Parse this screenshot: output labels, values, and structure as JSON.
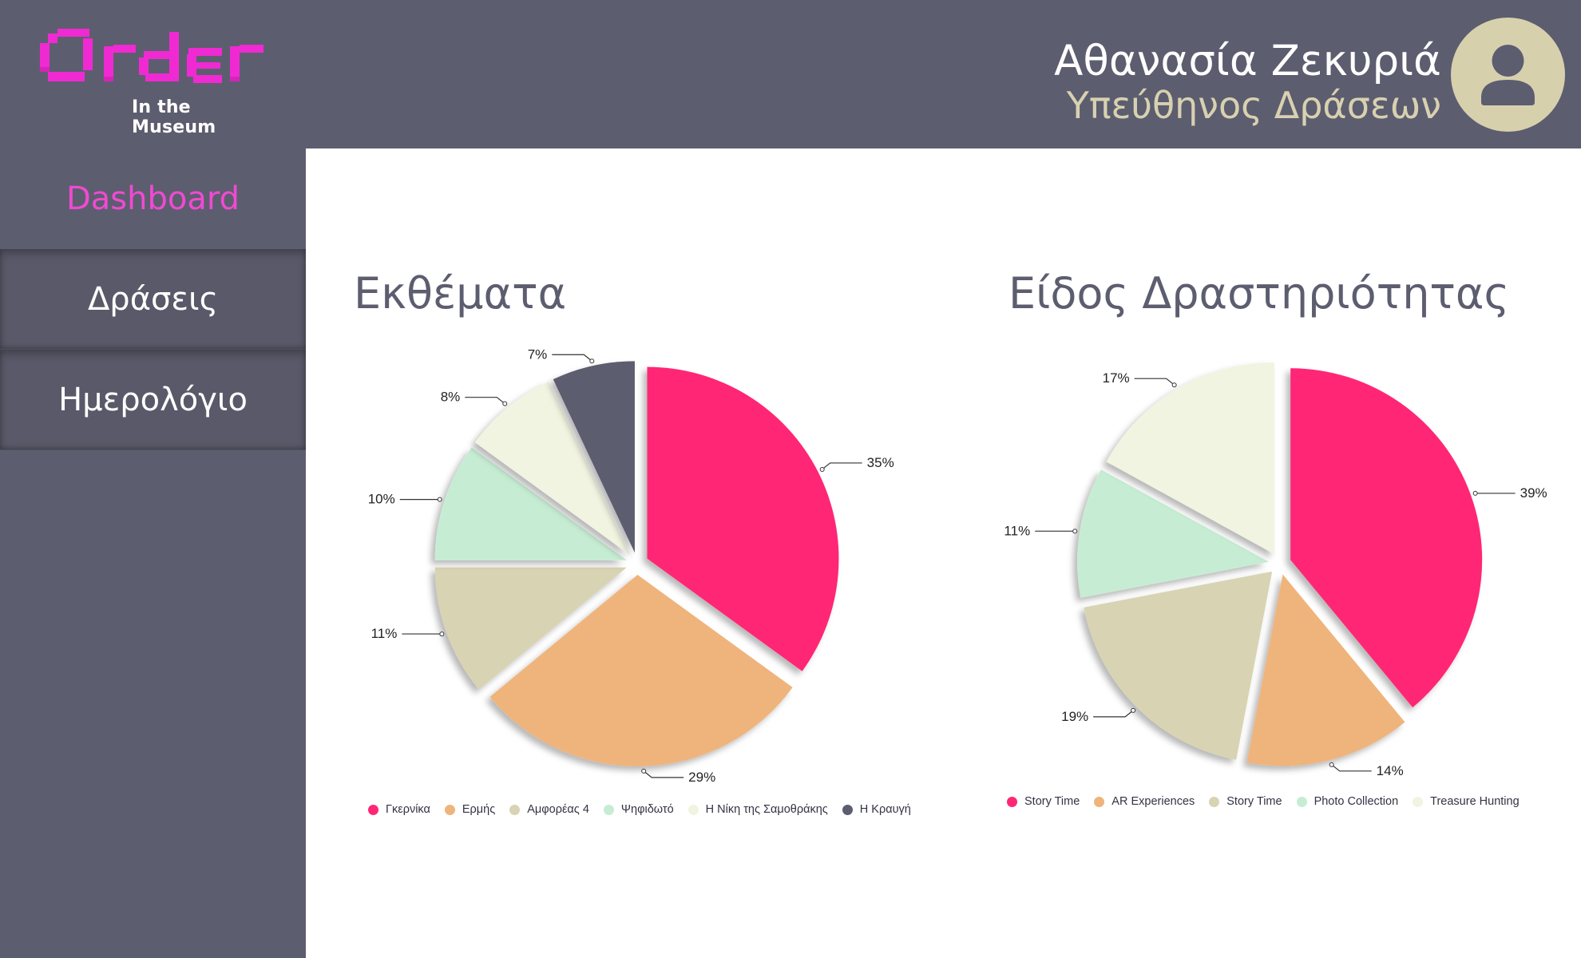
{
  "app": {
    "logo_text": "Order",
    "logo_subtitle": "In the Museum",
    "logo_color": "#f02ad2"
  },
  "user": {
    "name": "Αθανασία Ζεκυριά",
    "role": "Υπεύθηνος Δράσεων",
    "avatar_icon": "user-silhouette-icon"
  },
  "sidebar": {
    "items": [
      {
        "label": "Dashboard",
        "active": true
      },
      {
        "label": "Δράσεις",
        "active": false
      },
      {
        "label": "Ημερολόγιο",
        "active": false
      }
    ]
  },
  "colors": {
    "header_bg": "#5d5d70",
    "accent_pink": "#f04ad2",
    "avatar_bg": "#d7d0ad"
  },
  "chart_data": [
    {
      "type": "pie",
      "title": "Εκθέματα",
      "legend_position": "bottom",
      "slices": [
        {
          "name": "Γκερνίκα",
          "value": 35,
          "label": "35%",
          "color": "#ff2775"
        },
        {
          "name": "Ερμής",
          "value": 29,
          "label": "29%",
          "color": "#efb47c"
        },
        {
          "name": "Αμφορέας 4",
          "value": 11,
          "label": "11%",
          "color": "#d8d3b2"
        },
        {
          "name": "Ψηφιδωτό",
          "value": 10,
          "label": "10%",
          "color": "#c6edd3"
        },
        {
          "name": "Η Νίκη της Σαμοθράκης",
          "value": 8,
          "label": "8%",
          "color": "#f1f4e0"
        },
        {
          "name": "Η Κραυγή",
          "value": 7,
          "label": "7%",
          "color": "#5d5d70"
        }
      ]
    },
    {
      "type": "pie",
      "title": "Είδος Δραστηριότητας",
      "legend_position": "bottom",
      "slices": [
        {
          "name": "Story Time",
          "value": 39,
          "label": "39%",
          "color": "#ff2775"
        },
        {
          "name": "AR Experiences",
          "value": 14,
          "label": "14%",
          "color": "#efb47c"
        },
        {
          "name": "Story Time",
          "value": 19,
          "label": "19%",
          "color": "#d8d3b2"
        },
        {
          "name": "Photo Collection",
          "value": 11,
          "label": "11%",
          "color": "#c6edd3"
        },
        {
          "name": "Treasure Hunting",
          "value": 17,
          "label": "17%",
          "color": "#f1f4e0"
        }
      ]
    }
  ]
}
